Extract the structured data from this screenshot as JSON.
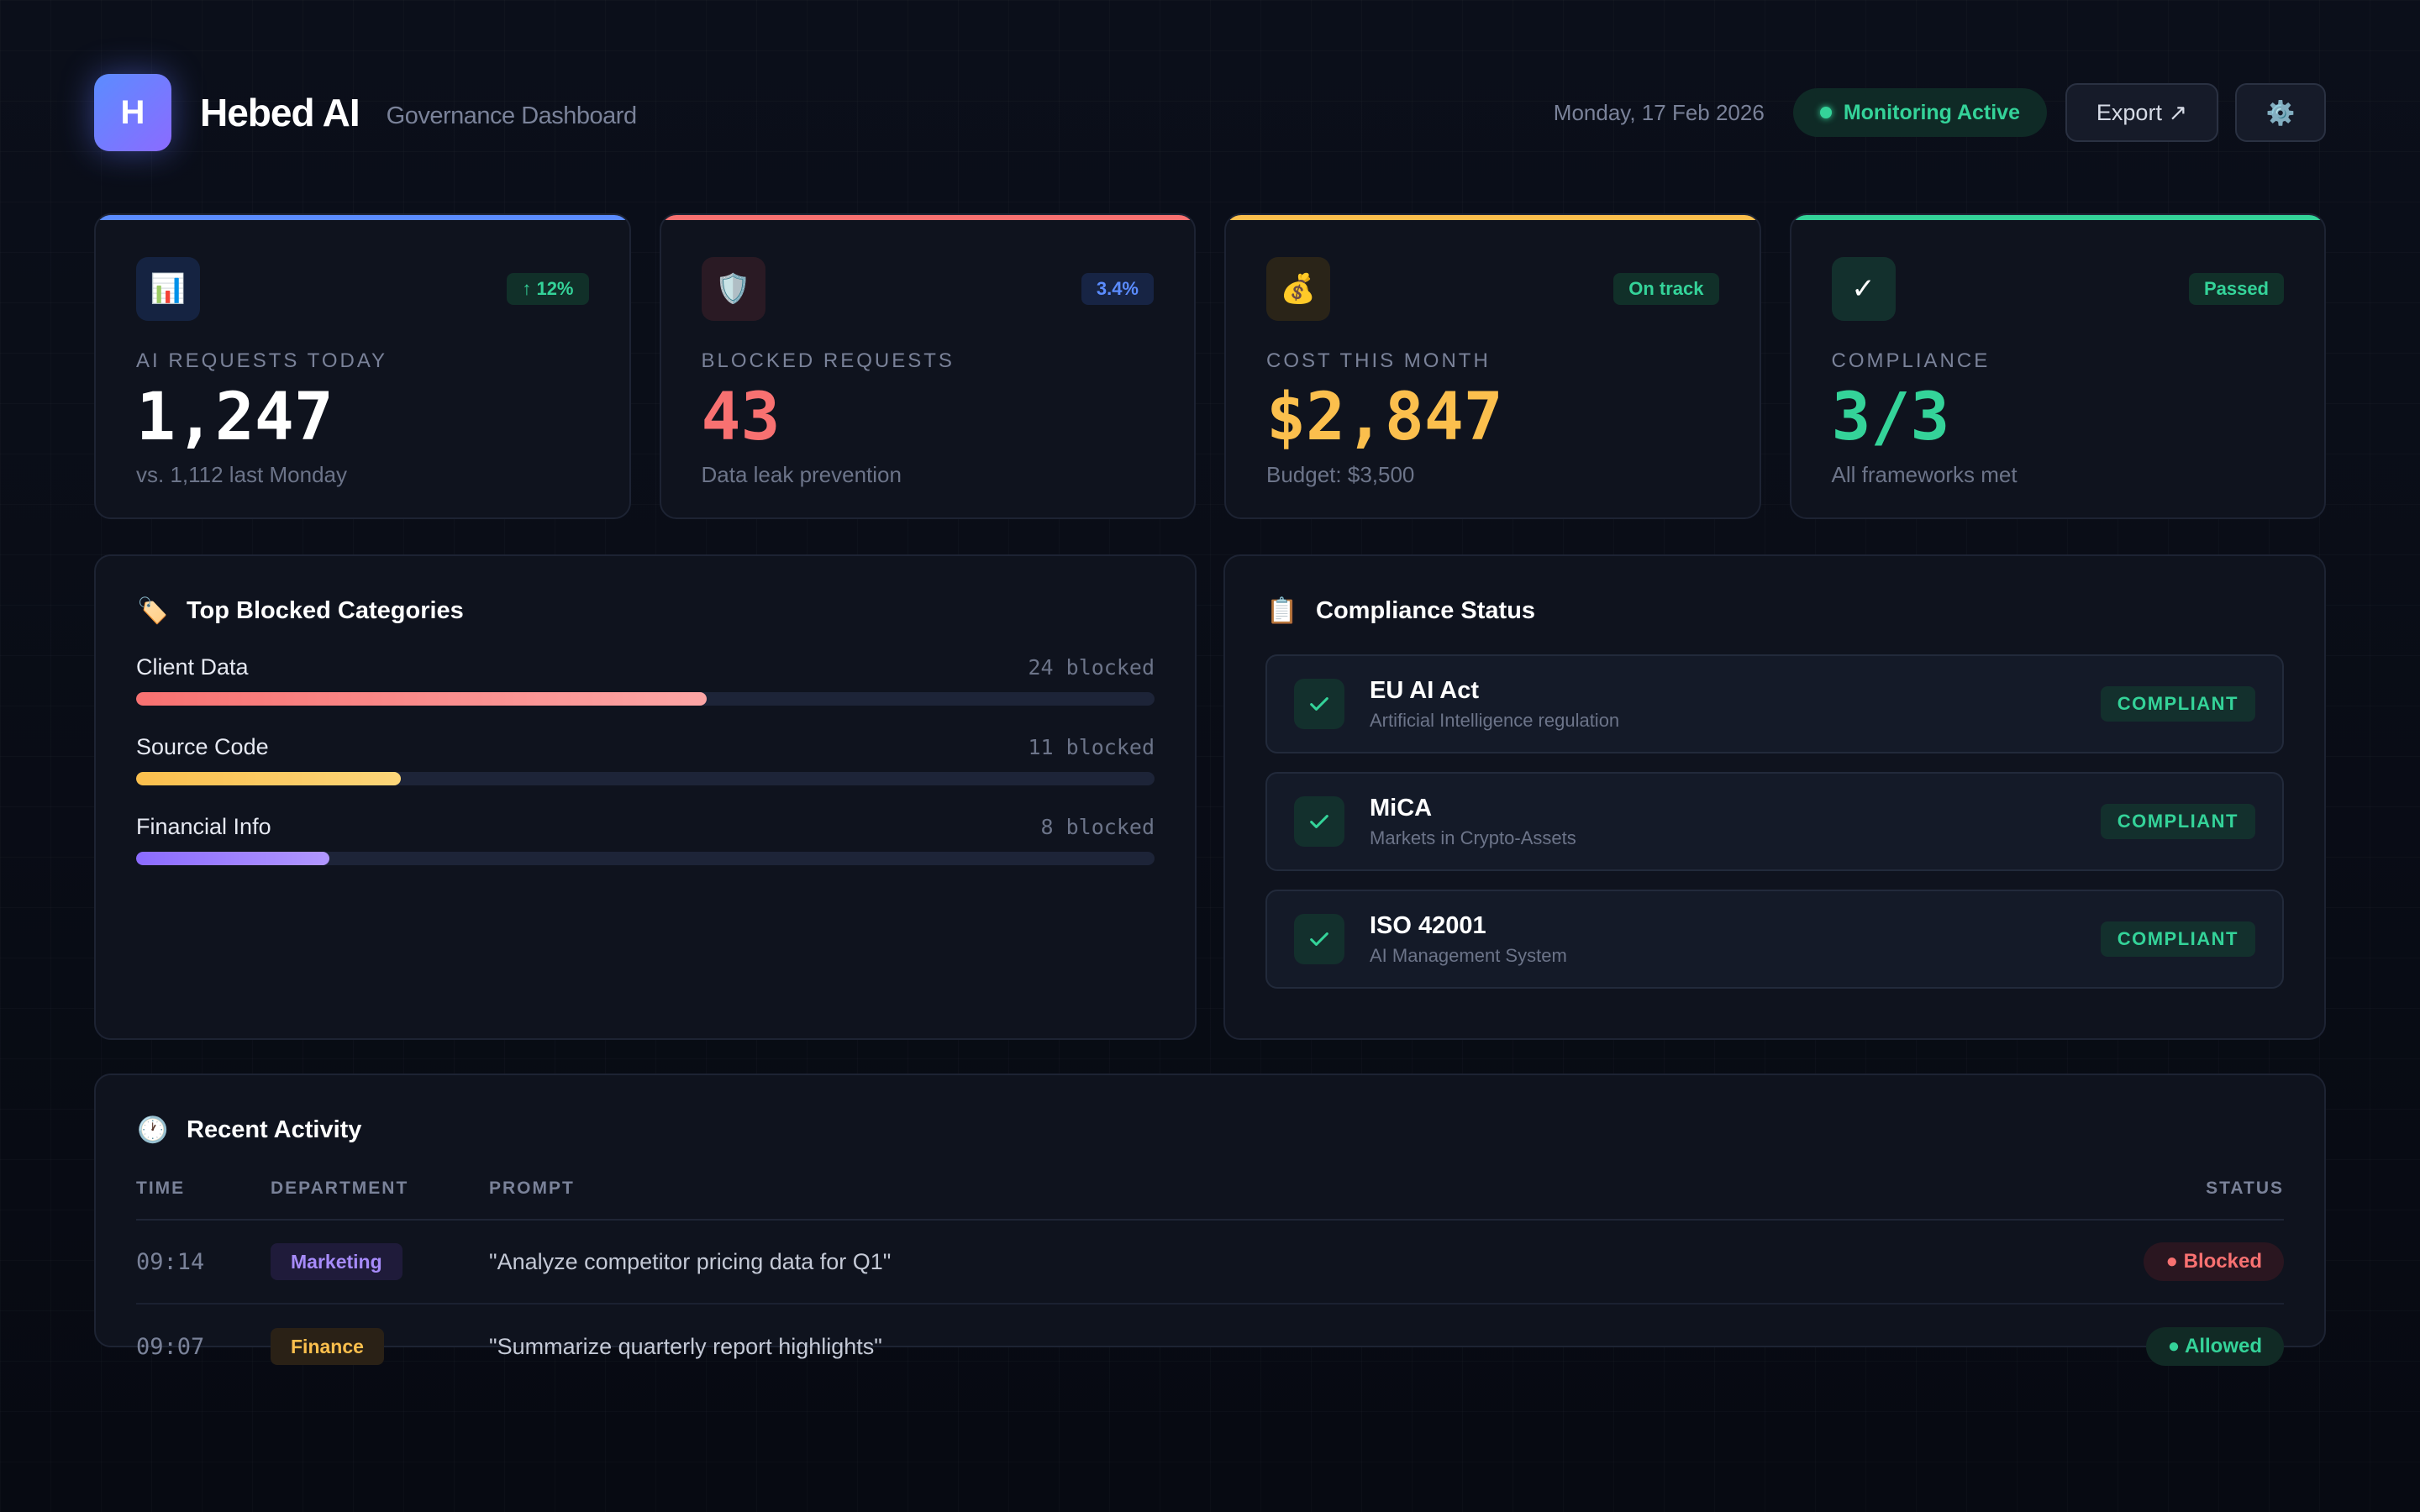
{
  "header": {
    "logo_letter": "H",
    "brand": "Hebed AI",
    "subtitle": "Governance Dashboard",
    "date": "Monday, 17 Feb 2026",
    "monitoring": "Monitoring Active",
    "export_label": "Export ↗",
    "settings_icon": "⚙️"
  },
  "kpis": [
    {
      "icon": "📊",
      "badge": "↑ 12%",
      "label": "AI REQUESTS TODAY",
      "value": "1,247",
      "sub": "vs. 1,112 last Monday",
      "accent": "#5b8cff",
      "value_color": "#ffffff",
      "badge_bg": "#113029",
      "badge_color": "#34d399",
      "icon_bg": "#152341"
    },
    {
      "icon": "🛡️",
      "badge": "3.4%",
      "label": "BLOCKED REQUESTS",
      "value": "43",
      "sub": "Data leak prevention",
      "accent": "#f87171",
      "value_color": "#f87171",
      "badge_bg": "#172444",
      "badge_color": "#5b8cff",
      "icon_bg": "#2a1a24"
    },
    {
      "icon": "💰",
      "badge": "On track",
      "label": "COST THIS MONTH",
      "value": "$2,847",
      "sub": "Budget: $3,500",
      "accent": "#fbbf4d",
      "value_color": "#fbbf4d",
      "badge_bg": "#113029",
      "badge_color": "#34d399",
      "icon_bg": "#2a2418"
    },
    {
      "icon": "✓",
      "badge": "Passed",
      "label": "COMPLIANCE",
      "value": "3/3",
      "sub": "All frameworks met",
      "accent": "#34d399",
      "value_color": "#34d399",
      "badge_bg": "#113029",
      "badge_color": "#34d399",
      "icon_bg": "#13302d"
    }
  ],
  "blocked": {
    "icon": "🏷️",
    "title": "Top Blocked Categories",
    "categories": [
      {
        "name": "Client Data",
        "count": "24 blocked",
        "fraction": 0.56,
        "from": "#f87171",
        "to": "#fca5a5"
      },
      {
        "name": "Source Code",
        "count": "11 blocked",
        "fraction": 0.26,
        "from": "#fbbf4d",
        "to": "#fcd679"
      },
      {
        "name": "Financial Info",
        "count": "8 blocked",
        "fraction": 0.19,
        "from": "#8b6bff",
        "to": "#b197ff"
      }
    ]
  },
  "compliance": {
    "icon": "📋",
    "title": "Compliance Status",
    "frameworks": [
      {
        "name": "EU AI Act",
        "desc": "Artificial Intelligence regulation",
        "status": "COMPLIANT"
      },
      {
        "name": "MiCA",
        "desc": "Markets in Crypto-Assets",
        "status": "COMPLIANT"
      },
      {
        "name": "ISO 42001",
        "desc": "AI Management System",
        "status": "COMPLIANT"
      }
    ]
  },
  "activity": {
    "icon": "🕐",
    "title": "Recent Activity",
    "columns": {
      "time": "TIME",
      "dept": "DEPARTMENT",
      "prompt": "PROMPT",
      "status": "STATUS"
    },
    "rows": [
      {
        "time": "09:14",
        "dept": "Marketing",
        "dept_bg": "#1f1b3a",
        "dept_color": "#a78bfa",
        "prompt": "\"Analyze competitor pricing data for Q1\"",
        "status": "● Blocked",
        "status_bg": "#2a1620",
        "status_color": "#f87171"
      },
      {
        "time": "09:07",
        "dept": "Finance",
        "dept_bg": "#2a2116",
        "dept_color": "#fbbf4d",
        "prompt": "\"Summarize quarterly report highlights\"",
        "status": "● Allowed",
        "status_bg": "#112a25",
        "status_color": "#34d399"
      }
    ]
  }
}
